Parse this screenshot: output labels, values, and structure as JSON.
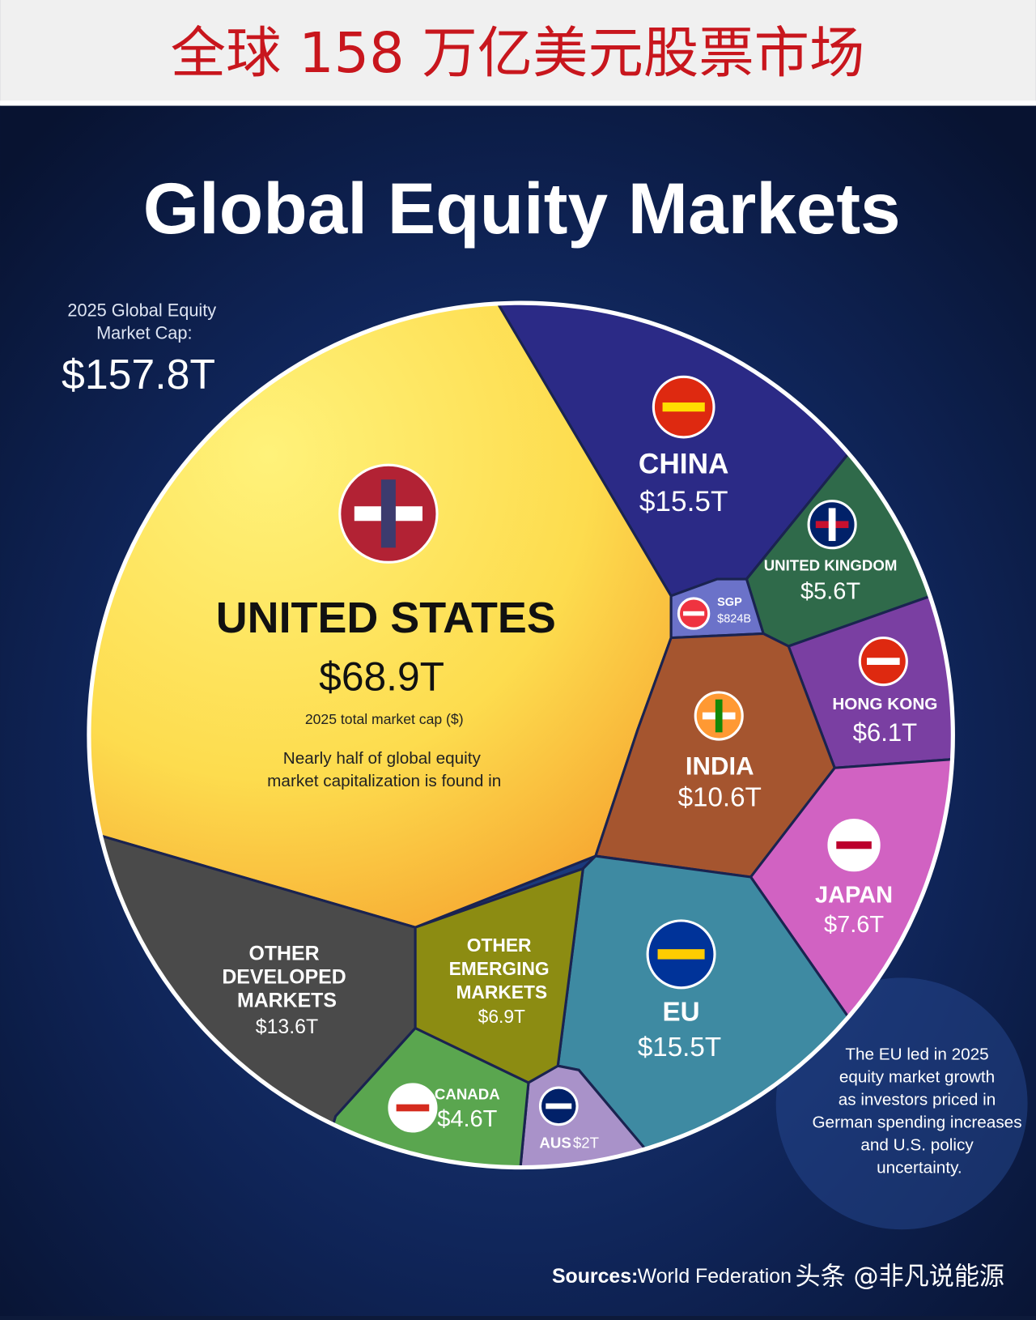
{
  "header": {
    "title": "全球 158 万亿美元股票市场"
  },
  "chart_data": {
    "type": "voronoi",
    "title": "Global Equity Markets",
    "total_label": "2025 Global Equity Market Cap:",
    "total": {
      "value": 157.8,
      "label": "$157.8T"
    },
    "categories": [
      "UNITED STATES",
      "CHINA",
      "UNITED KINGDOM",
      "SGP",
      "HONG KONG",
      "INDIA",
      "JAPAN",
      "EU",
      "AUS",
      "CANADA",
      "OTHER EMERGING MARKETS",
      "OTHER DEVELOPED MARKETS"
    ],
    "values": [
      68.9,
      15.5,
      5.6,
      0.824,
      6.1,
      10.6,
      7.6,
      15.5,
      2,
      4.6,
      6.9,
      13.6
    ],
    "value_labels": [
      "$68.9T",
      "$15.5T",
      "$5.6T",
      "$824B",
      "$6.1T",
      "$10.6T",
      "$7.6T",
      "$15.5T",
      "$2T",
      "$4.6T",
      "$6.9T",
      "$13.6T"
    ],
    "colors": [
      "#fde35a",
      "#2b2a86",
      "#2f6a4a",
      "#6b72c9",
      "#7a3fa2",
      "#a5552f",
      "#d162c2",
      "#3e8aa2",
      "#a992c9",
      "#5aa64f",
      "#8c8c12",
      "#4a4a4a"
    ],
    "us_subtitle": "2025 total market cap ($)",
    "us_note": "Nearly half of global equity market capitalization is found in U.S. listings.",
    "eu_note": "The EU led in 2025 equity market growth as investors priced in German spending increases and U.S. policy uncertainty.",
    "source_label": "Sources:",
    "source": "World Federation",
    "watermark": "头条 @非凡说能源"
  }
}
